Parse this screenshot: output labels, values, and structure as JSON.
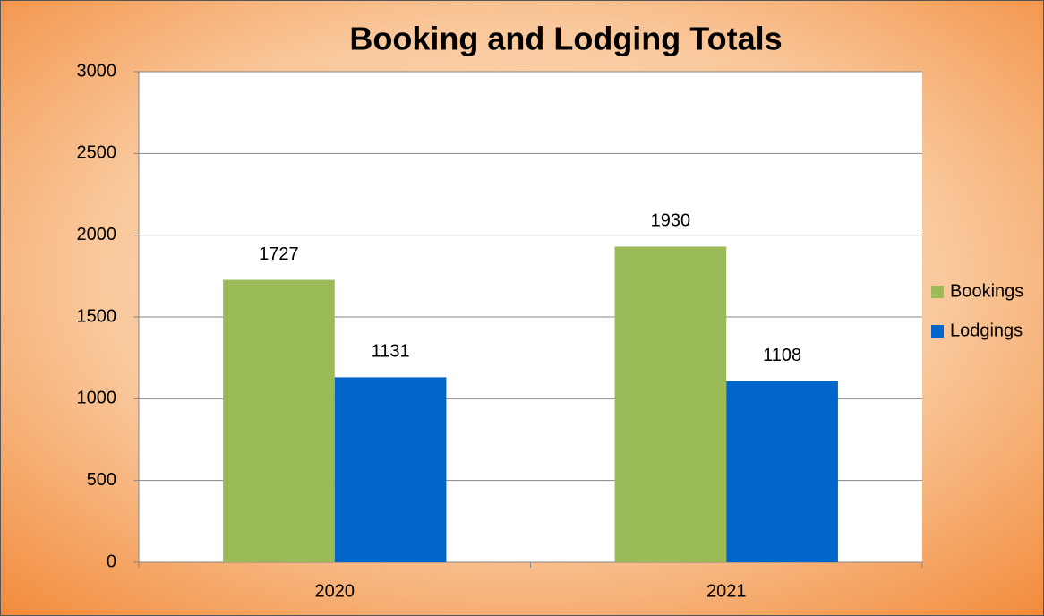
{
  "chart_data": {
    "type": "bar",
    "title": "Booking and Lodging Totals",
    "categories": [
      "2020",
      "2021"
    ],
    "series": [
      {
        "name": "Bookings",
        "color": "#9bbb59",
        "values": [
          1727,
          1930
        ]
      },
      {
        "name": "Lodgings",
        "color": "#0066cc",
        "values": [
          1131,
          1108
        ]
      }
    ],
    "ylim": [
      0,
      3000
    ],
    "yticks": [
      0,
      500,
      1000,
      1500,
      2000,
      2500,
      3000
    ],
    "grid": true,
    "legend": "right",
    "data_labels": true
  }
}
